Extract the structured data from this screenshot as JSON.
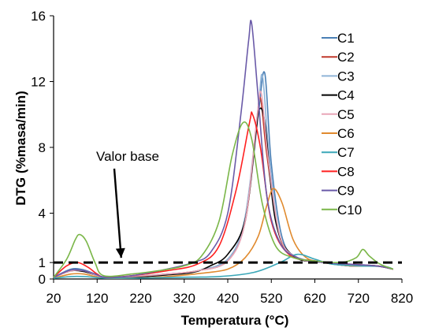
{
  "chart_data": {
    "type": "line",
    "xlabel": "Temperatura (°C)",
    "ylabel": "DTG (%masa/min)",
    "xlim": [
      20,
      820
    ],
    "ylim": [
      0,
      16
    ],
    "xticks": [
      20,
      120,
      220,
      320,
      420,
      520,
      620,
      720,
      820
    ],
    "yticks": [
      0,
      1,
      4,
      8,
      12,
      16
    ],
    "grid": false,
    "legend_position": "right",
    "baseline": {
      "y": 1,
      "style": "dashed",
      "color": "#000000"
    },
    "annotation": {
      "text": "Valor base",
      "points_to": [
        320,
        1.0
      ]
    },
    "series": [
      {
        "name": "C1",
        "color": "#4a7fb5",
        "peak_x": 505,
        "peak_y": 12.5,
        "width": 22,
        "points": [
          [
            20,
            0.1
          ],
          [
            60,
            0.6
          ],
          [
            90,
            0.55
          ],
          [
            115,
            0.3
          ],
          [
            140,
            0.1
          ],
          [
            200,
            0.15
          ],
          [
            280,
            0.3
          ],
          [
            350,
            0.5
          ],
          [
            420,
            1.2
          ],
          [
            460,
            3.5
          ],
          [
            490,
            10
          ],
          [
            505,
            12.5
          ],
          [
            520,
            7
          ],
          [
            545,
            2.5
          ],
          [
            580,
            1.3
          ],
          [
            640,
            1.0
          ],
          [
            700,
            0.8
          ],
          [
            760,
            0.8
          ],
          [
            800,
            0.6
          ]
        ]
      },
      {
        "name": "C2",
        "color": "#c0392b",
        "peak_x": 495,
        "peak_y": 11.0,
        "width": 22,
        "points": [
          [
            20,
            0.1
          ],
          [
            60,
            0.5
          ],
          [
            90,
            0.5
          ],
          [
            115,
            0.25
          ],
          [
            140,
            0.1
          ],
          [
            200,
            0.15
          ],
          [
            280,
            0.3
          ],
          [
            350,
            0.5
          ],
          [
            420,
            1.1
          ],
          [
            460,
            3.5
          ],
          [
            485,
            9
          ],
          [
            495,
            11.0
          ],
          [
            510,
            7.5
          ],
          [
            540,
            2.5
          ],
          [
            580,
            1.3
          ],
          [
            640,
            1.0
          ],
          [
            700,
            0.8
          ],
          [
            760,
            0.8
          ],
          [
            800,
            0.6
          ]
        ]
      },
      {
        "name": "C3",
        "color": "#8fb4d8",
        "peak_x": 500,
        "peak_y": 12.3,
        "width": 22,
        "points": [
          [
            20,
            0.1
          ],
          [
            60,
            0.55
          ],
          [
            90,
            0.5
          ],
          [
            115,
            0.3
          ],
          [
            140,
            0.1
          ],
          [
            200,
            0.15
          ],
          [
            280,
            0.3
          ],
          [
            350,
            0.5
          ],
          [
            420,
            1.2
          ],
          [
            460,
            3.8
          ],
          [
            490,
            10.5
          ],
          [
            500,
            12.3
          ],
          [
            515,
            7.5
          ],
          [
            540,
            2.6
          ],
          [
            580,
            1.3
          ],
          [
            640,
            1.0
          ],
          [
            700,
            0.8
          ],
          [
            760,
            0.8
          ],
          [
            800,
            0.6
          ]
        ]
      },
      {
        "name": "C4",
        "color": "#000000",
        "peak_x": 492,
        "peak_y": 10.3,
        "width": 24,
        "points": [
          [
            20,
            0.1
          ],
          [
            60,
            0.5
          ],
          [
            90,
            0.45
          ],
          [
            115,
            0.25
          ],
          [
            140,
            0.1
          ],
          [
            200,
            0.1
          ],
          [
            280,
            0.25
          ],
          [
            340,
            0.4
          ],
          [
            380,
            0.8
          ],
          [
            420,
            1.5
          ],
          [
            460,
            3.6
          ],
          [
            485,
            9
          ],
          [
            492,
            10.3
          ],
          [
            505,
            9.5
          ],
          [
            530,
            3.5
          ],
          [
            570,
            1.4
          ],
          [
            640,
            1.0
          ],
          [
            700,
            0.8
          ],
          [
            760,
            0.8
          ],
          [
            800,
            0.6
          ]
        ]
      },
      {
        "name": "C5",
        "color": "#e8a6b8",
        "peak_x": 497,
        "peak_y": 11.3,
        "width": 22,
        "points": [
          [
            20,
            0.1
          ],
          [
            60,
            0.5
          ],
          [
            90,
            0.5
          ],
          [
            115,
            0.25
          ],
          [
            140,
            0.1
          ],
          [
            200,
            0.15
          ],
          [
            280,
            0.3
          ],
          [
            350,
            0.5
          ],
          [
            420,
            1.1
          ],
          [
            460,
            3.5
          ],
          [
            487,
            9.8
          ],
          [
            497,
            11.3
          ],
          [
            512,
            7.5
          ],
          [
            540,
            2.6
          ],
          [
            580,
            1.3
          ],
          [
            640,
            1.0
          ],
          [
            700,
            0.8
          ],
          [
            760,
            0.8
          ],
          [
            800,
            0.6
          ]
        ]
      },
      {
        "name": "C6",
        "color": "#e08a2e",
        "peak_x": 525,
        "peak_y": 5.5,
        "width": 28,
        "points": [
          [
            20,
            0.05
          ],
          [
            60,
            0.3
          ],
          [
            90,
            0.3
          ],
          [
            115,
            0.15
          ],
          [
            140,
            0.05
          ],
          [
            200,
            0.05
          ],
          [
            280,
            0.15
          ],
          [
            360,
            0.35
          ],
          [
            420,
            0.6
          ],
          [
            460,
            1.3
          ],
          [
            490,
            2.6
          ],
          [
            510,
            4.5
          ],
          [
            525,
            5.5
          ],
          [
            545,
            4.6
          ],
          [
            570,
            2.4
          ],
          [
            600,
            1.3
          ],
          [
            640,
            1.0
          ],
          [
            700,
            0.8
          ],
          [
            760,
            0.8
          ],
          [
            800,
            0.6
          ]
        ]
      },
      {
        "name": "C7",
        "color": "#3aa7b8",
        "peak_x": 580,
        "peak_y": 1.5,
        "width": 40,
        "points": [
          [
            20,
            0.05
          ],
          [
            60,
            0.15
          ],
          [
            90,
            0.15
          ],
          [
            115,
            0.1
          ],
          [
            140,
            0.05
          ],
          [
            200,
            0.05
          ],
          [
            300,
            0.1
          ],
          [
            400,
            0.15
          ],
          [
            480,
            0.4
          ],
          [
            540,
            1.0
          ],
          [
            580,
            1.5
          ],
          [
            620,
            1.2
          ],
          [
            660,
            0.9
          ],
          [
            720,
            0.8
          ],
          [
            780,
            0.75
          ],
          [
            800,
            0.6
          ]
        ]
      },
      {
        "name": "C8",
        "color": "#ff2020",
        "peak_x": 477,
        "peak_y": 10.0,
        "width": 24,
        "points": [
          [
            20,
            0.1
          ],
          [
            50,
            0.8
          ],
          [
            75,
            1.0
          ],
          [
            100,
            0.7
          ],
          [
            120,
            0.3
          ],
          [
            140,
            0.1
          ],
          [
            200,
            0.2
          ],
          [
            280,
            0.5
          ],
          [
            350,
            0.9
          ],
          [
            400,
            2
          ],
          [
            440,
            5.5
          ],
          [
            470,
            9.5
          ],
          [
            477,
            10.0
          ],
          [
            495,
            8
          ],
          [
            520,
            3.5
          ],
          [
            560,
            1.5
          ],
          [
            620,
            1.1
          ],
          [
            700,
            0.9
          ],
          [
            760,
            0.8
          ],
          [
            800,
            0.6
          ]
        ]
      },
      {
        "name": "C9",
        "color": "#6a5aa8",
        "peak_x": 475,
        "peak_y": 15.5,
        "width": 22,
        "points": [
          [
            20,
            0.1
          ],
          [
            60,
            0.55
          ],
          [
            90,
            0.5
          ],
          [
            115,
            0.3
          ],
          [
            140,
            0.1
          ],
          [
            200,
            0.2
          ],
          [
            280,
            0.6
          ],
          [
            340,
            1.0
          ],
          [
            380,
            1.6
          ],
          [
            420,
            4
          ],
          [
            450,
            10
          ],
          [
            468,
            14.5
          ],
          [
            475,
            15.5
          ],
          [
            490,
            11
          ],
          [
            510,
            5
          ],
          [
            540,
            2.2
          ],
          [
            580,
            1.3
          ],
          [
            640,
            1.0
          ],
          [
            700,
            0.9
          ],
          [
            760,
            0.8
          ],
          [
            800,
            0.6
          ]
        ]
      },
      {
        "name": "C10",
        "color": "#7ab648",
        "peak_x": 455,
        "peak_y": 9.5,
        "width": 30,
        "points": [
          [
            20,
            0.1
          ],
          [
            50,
            1.2
          ],
          [
            70,
            2.4
          ],
          [
            80,
            2.7
          ],
          [
            95,
            2.3
          ],
          [
            115,
            1.0
          ],
          [
            135,
            0.2
          ],
          [
            200,
            0.3
          ],
          [
            260,
            0.5
          ],
          [
            320,
            0.8
          ],
          [
            360,
            1.4
          ],
          [
            400,
            3.5
          ],
          [
            430,
            7.5
          ],
          [
            455,
            9.5
          ],
          [
            475,
            8.5
          ],
          [
            500,
            4.5
          ],
          [
            530,
            2.0
          ],
          [
            570,
            1.3
          ],
          [
            620,
            1.1
          ],
          [
            680,
            1.0
          ],
          [
            715,
            1.3
          ],
          [
            730,
            1.8
          ],
          [
            745,
            1.4
          ],
          [
            770,
            0.9
          ],
          [
            800,
            0.6
          ]
        ]
      }
    ]
  }
}
